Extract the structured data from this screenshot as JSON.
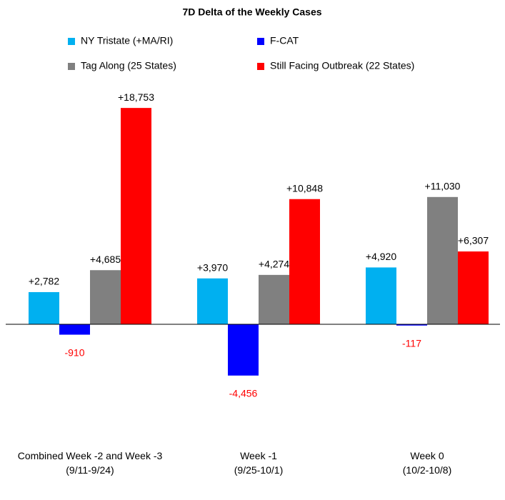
{
  "chart_data": {
    "type": "bar",
    "title": "7D Delta of the Weekly Cases",
    "categories": [
      "Combined Week -2 and Week -3\n(9/11-9/24)",
      "Week -1\n(9/25-10/1)",
      "Week 0\n(10/2-10/8)"
    ],
    "series": [
      {
        "name": "NY Tristate (+MA/RI)",
        "color": "#00b0f0",
        "values": [
          2782,
          3970,
          4920
        ],
        "value_labels": [
          "+2,782",
          "+3,970",
          "+4,920"
        ]
      },
      {
        "name": "F-CAT",
        "color": "#0000ff",
        "values": [
          -910,
          -4456,
          -117
        ],
        "value_labels": [
          "-910",
          "-4,456",
          "-117"
        ]
      },
      {
        "name": "Tag Along (25 States)",
        "color": "#808080",
        "values": [
          4685,
          4274,
          11030
        ],
        "value_labels": [
          "+4,685",
          "+4,274",
          "+11,030"
        ]
      },
      {
        "name": "Still Facing Outbreak (22 States)",
        "color": "#ff0000",
        "values": [
          18753,
          10848,
          6307
        ],
        "value_labels": [
          "+18,753",
          "+10,848",
          "+6,307"
        ]
      }
    ],
    "negative_label_color": "#ff0000",
    "ylim": [
      -8000,
      20000
    ]
  }
}
